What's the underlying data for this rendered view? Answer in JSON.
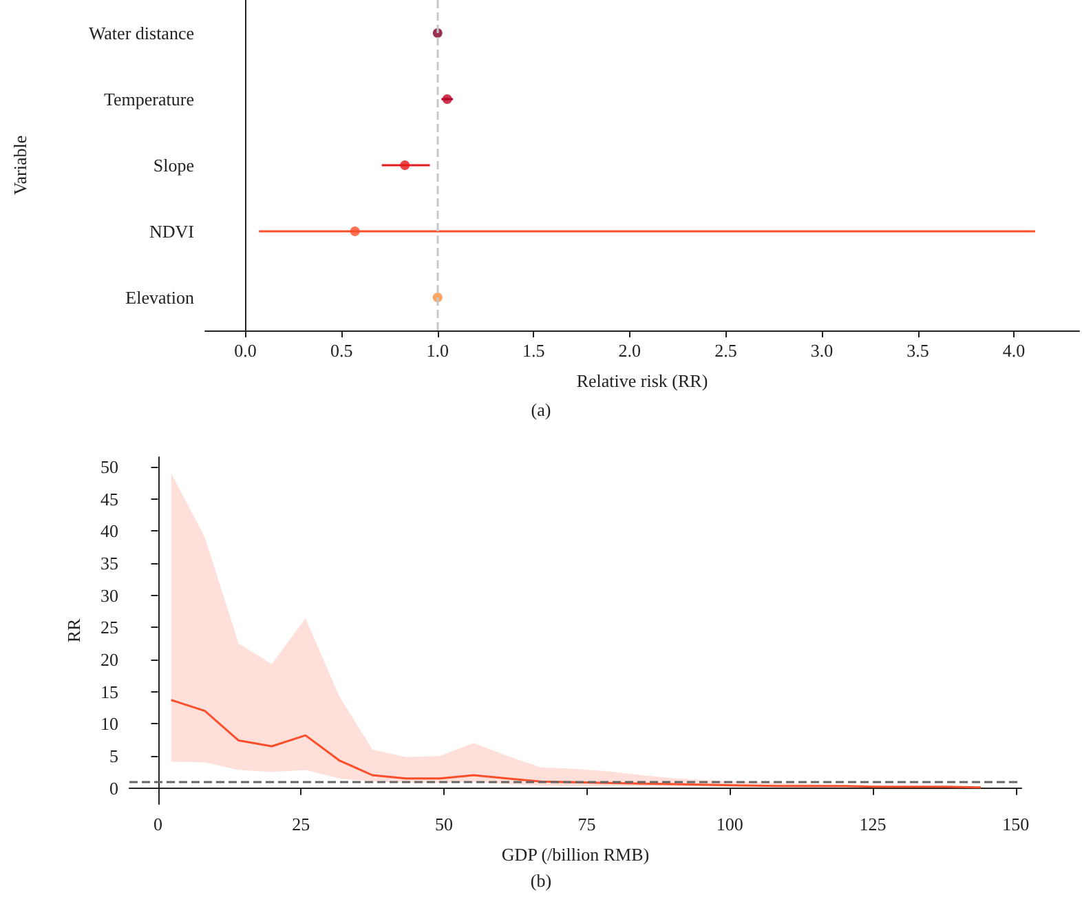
{
  "chart_data": [
    {
      "type": "scatter",
      "orientation": "horizontal",
      "xlabel": "Relative risk (RR)",
      "ylabel": "Variable",
      "categories": [
        "Water distance",
        "Temperature",
        "Slope",
        "NDVI",
        "Elevation"
      ],
      "values": [
        1.0,
        1.05,
        0.83,
        0.57,
        1.0
      ],
      "errors": [
        null,
        [
          1.02,
          1.08
        ],
        [
          0.71,
          0.96
        ],
        [
          0.07,
          4.11
        ],
        null
      ],
      "colors": [
        "#800026",
        "#bd0026",
        "#e31a1c",
        "#fc4e2a",
        "#fd8d3c"
      ],
      "xlim": [
        -0.21,
        4.34
      ],
      "xticks": [
        {
          "value": 0,
          "label": "0.0"
        },
        0.5,
        {
          "value": 1,
          "label": "1.0"
        },
        1.5,
        {
          "value": 2,
          "label": "2.0"
        },
        2.5,
        {
          "value": 3,
          "label": "3.0"
        },
        3.5,
        {
          "value": 4,
          "label": "4.0"
        }
      ],
      "ref_lines": [
        {
          "axis": "x",
          "value": 1,
          "color": "#c8c8c8",
          "line_style": "dashed"
        }
      ],
      "marker": "circle",
      "grid": false,
      "annotations": [
        "(a)"
      ]
    },
    {
      "type": "line",
      "xlabel": "GDP (/billion RMB)",
      "ylabel": "RR",
      "x": [
        2.3,
        8.2,
        14.1,
        19.9,
        25.8,
        31.7,
        37.5,
        43.4,
        49.3,
        55.2,
        61.1,
        67.0,
        72.9,
        78.8,
        84.7,
        90.6,
        96.5,
        102.4,
        108.3,
        114.2,
        120.1,
        126.0,
        131.9,
        137.8,
        143.9
      ],
      "series": [
        {
          "color": "#fc4e2a",
          "values": [
            13.7,
            12.0,
            7.4,
            6.5,
            8.2,
            4.3,
            2.0,
            1.5,
            1.5,
            2.0,
            1.5,
            1.0,
            0.9,
            0.8,
            0.7,
            0.6,
            0.5,
            0.4,
            0.3,
            0.3,
            0.3,
            0.2,
            0.2,
            0.2,
            0.1
          ],
          "lower": [
            4.1,
            4.0,
            2.8,
            2.5,
            2.8,
            1.5,
            1.0,
            0.8,
            0.8,
            0.9,
            0.6,
            0.4,
            0.3,
            0.3,
            0.3,
            0.3,
            0.2,
            0.2,
            0.2,
            0.1,
            0.1,
            0.1,
            0.1,
            0.1,
            0.05
          ],
          "upper": [
            49,
            39,
            22.5,
            19.3,
            26.4,
            14.3,
            6.0,
            4.8,
            5.0,
            7.0,
            5.0,
            3.2,
            3.0,
            2.6,
            2.0,
            1.5,
            1.2,
            1.0,
            0.8,
            0.6,
            0.5,
            0.4,
            0.3,
            0.3,
            0.2
          ]
        }
      ],
      "xlim": [
        -5,
        151
      ],
      "xticks": [
        0,
        25,
        50,
        75,
        100,
        125,
        150
      ],
      "ylim": [
        -2.5,
        51.5
      ],
      "yticks": [
        0,
        5,
        10,
        15,
        20,
        25,
        30,
        35,
        40,
        45,
        50
      ],
      "ref_lines": [
        {
          "axis": "y",
          "value": 1,
          "color": "#666666",
          "line_style": "dashed"
        }
      ],
      "marker": "none",
      "grid": false,
      "annotations": [
        "(b)"
      ]
    }
  ]
}
